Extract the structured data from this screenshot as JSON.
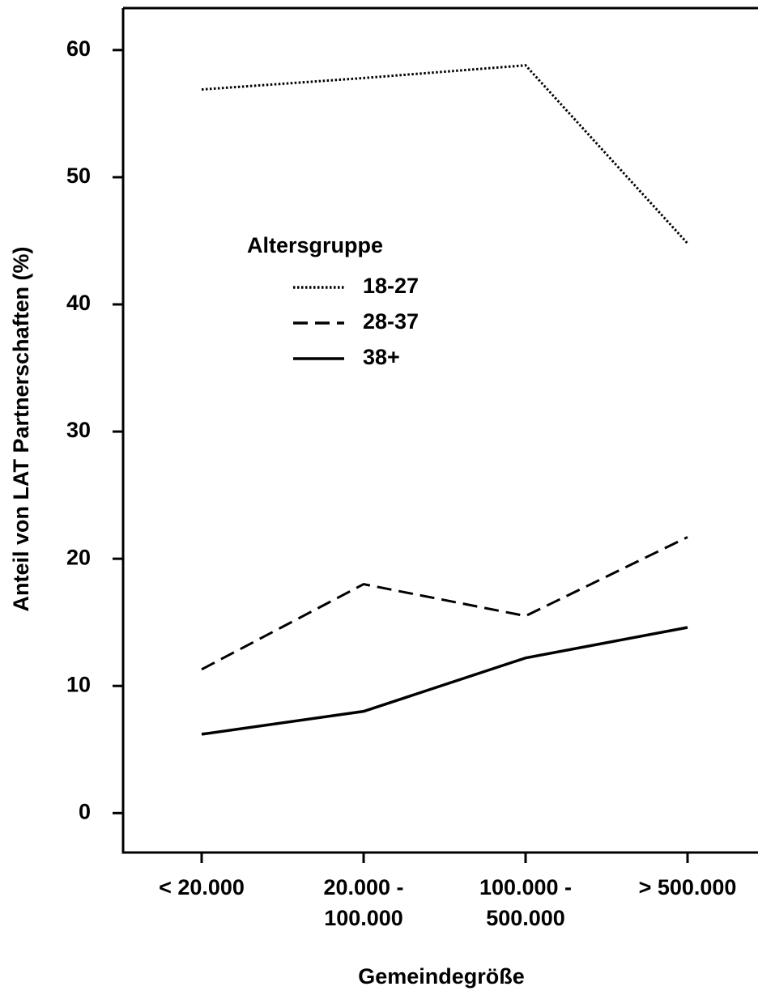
{
  "chart_data": {
    "type": "line",
    "x_label": "Gemeindegröße",
    "y_label": "Anteil von LAT Partnerschaften (%)",
    "categories": [
      "< 20.000",
      "20.000 -\n100.000",
      "100.000 -\n500.000",
      "> 500.000"
    ],
    "legend_title": "Altersgruppe",
    "series": [
      {
        "name": "18-27",
        "color": "#000000",
        "style": "dotted",
        "values": [
          56.9,
          57.8,
          58.8,
          44.8
        ]
      },
      {
        "name": "28-37",
        "color": "#000000",
        "style": "dashed",
        "values": [
          11.3,
          18.0,
          15.5,
          21.7
        ]
      },
      {
        "name": "38+",
        "color": "#000000",
        "style": "solid",
        "values": [
          6.2,
          8.0,
          12.2,
          14.6
        ]
      }
    ],
    "ylim": [
      -3.1,
      63.3
    ],
    "yticks": [
      0,
      10,
      20,
      30,
      40,
      50,
      60
    ],
    "grid": false
  }
}
